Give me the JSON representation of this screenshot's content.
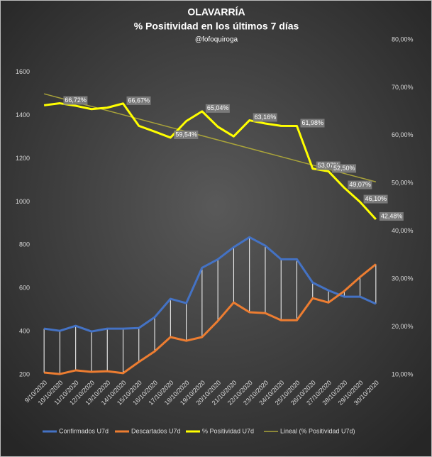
{
  "chart_data": {
    "type": "line",
    "title": "OLAVARRÍA",
    "subtitle": "% Positividad en los últimos 7 días",
    "author": "@fofoquiroga",
    "categories": [
      "9/10/2020",
      "10/10/2020",
      "11/10/2020",
      "12/10/2020",
      "13/10/2020",
      "14/10/2020",
      "15/10/2020",
      "16/10/2020",
      "17/10/2020",
      "18/10/2020",
      "19/10/2020",
      "20/10/2020",
      "21/10/2020",
      "22/10/2020",
      "23/10/2020",
      "24/10/2020",
      "25/10/2020",
      "26/10/2020",
      "27/10/2020",
      "28/10/2020",
      "29/10/2020",
      "30/10/2020"
    ],
    "series": [
      {
        "name": "Confirmados U7d",
        "color": "#4472c4",
        "values": [
          413,
          403,
          426,
          400,
          413,
          413,
          416,
          466,
          551,
          531,
          695,
          734,
          790,
          836,
          797,
          734,
          734,
          626,
          590,
          561,
          561,
          528
        ]
      },
      {
        "name": "Descartados U7d",
        "color": "#ed7d31",
        "values": [
          210,
          203,
          220,
          213,
          216,
          207,
          259,
          308,
          374,
          357,
          374,
          449,
          534,
          489,
          485,
          452,
          452,
          554,
          534,
          587,
          652,
          711
        ]
      },
      {
        "name": "% Positividad U7d",
        "color": "#ffff00",
        "axis": "y2",
        "values": [
          66.3,
          66.72,
          66.2,
          65.5,
          65.8,
          66.67,
          62.0,
          60.8,
          59.54,
          63.0,
          65.04,
          61.8,
          59.8,
          63.16,
          62.5,
          62.0,
          61.98,
          53.07,
          52.5,
          49.07,
          46.1,
          42.48
        ],
        "value_labels": [
          null,
          "66,72%",
          null,
          null,
          null,
          "66,67%",
          null,
          null,
          "59,54%",
          null,
          "65,04%",
          null,
          null,
          "63,16%",
          null,
          null,
          "61,98%",
          "53,07%",
          "52,50%",
          "49,07%",
          "46,10%",
          "42,48%"
        ]
      }
    ],
    "trendline": {
      "name": "Lineal (% Positividad U7d)",
      "color": "#a9a33a",
      "axis": "y2",
      "start": 68.7,
      "end": 50.3
    },
    "drop_lines": true,
    "ylim": [
      200,
      1750
    ],
    "yticks": [
      200,
      400,
      600,
      800,
      1000,
      1200,
      1400,
      1600
    ],
    "y2lim": [
      10,
      80
    ],
    "y2ticks": [
      {
        "value": 10,
        "label": "10,00%"
      },
      {
        "value": 20,
        "label": "20,00%"
      },
      {
        "value": 30,
        "label": "30,00%"
      },
      {
        "value": 40,
        "label": "40,00%"
      },
      {
        "value": 50,
        "label": "50,00%"
      },
      {
        "value": 60,
        "label": "60,00%"
      },
      {
        "value": 70,
        "label": "70,00%"
      },
      {
        "value": 80,
        "label": "80,00%"
      }
    ],
    "legend": "bottom"
  }
}
